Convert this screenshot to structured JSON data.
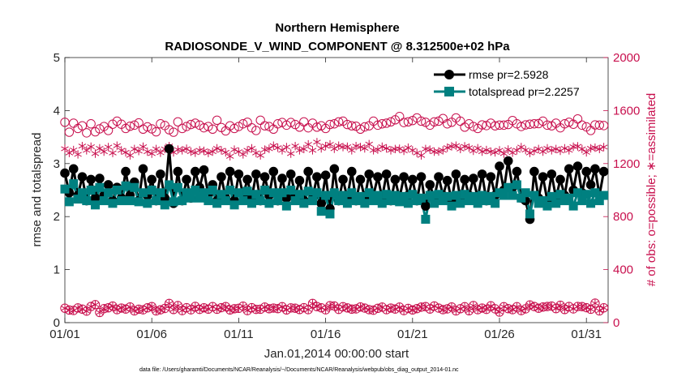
{
  "chart_data": {
    "type": "line",
    "title": "Northern Hemisphere",
    "subtitle": "RADIOSONDE_V_WIND_COMPONENT @ 8.312500e+02 hPa",
    "xlabel": "Jan.01,2014 00:00:00 start",
    "ylabel_left": "rmse and totalspread",
    "ylabel_right": "# of obs: o=possible; ∗=assimilated",
    "footnote": "data file: /Users/gharamti/Documents/NCAR/Reanalysis/~/Documents/NCAR/Reanalysis/webpub/obs_diag_output_2014-01.nc",
    "x_ticks": [
      "01/01",
      "01/06",
      "01/11",
      "01/16",
      "01/21",
      "01/26",
      "01/31"
    ],
    "x_tick_days": [
      1,
      6,
      11,
      16,
      21,
      26,
      31
    ],
    "xlim": [
      1,
      32.25
    ],
    "ylim_left": [
      0,
      5
    ],
    "yticks_left": [
      "0",
      "1",
      "2",
      "3",
      "4",
      "5"
    ],
    "ylim_right": [
      0,
      2000
    ],
    "yticks_right": [
      "0",
      "400",
      "800",
      "1200",
      "1600",
      "2000"
    ],
    "colors": {
      "rmse": "#000000",
      "spread": "#008080",
      "obs": "#c8104e"
    },
    "legend": {
      "position": "top-right",
      "rmse_label": "rmse pr=2.5928",
      "spread_label": "totalspread pr=2.2257"
    },
    "x_step_days": 0.25,
    "series": [
      {
        "name": "rmse",
        "values": [
          2.82,
          2.45,
          2.9,
          2.4,
          2.75,
          2.3,
          2.7,
          2.35,
          2.72,
          2.4,
          2.6,
          2.3,
          2.55,
          2.35,
          2.85,
          2.4,
          2.65,
          2.3,
          2.9,
          2.4,
          2.7,
          2.3,
          2.8,
          2.35,
          3.28,
          2.25,
          2.85,
          2.3,
          2.7,
          2.35,
          2.85,
          2.55,
          2.88,
          2.4,
          2.6,
          2.3,
          2.75,
          2.35,
          2.85,
          2.3,
          2.8,
          2.4,
          2.7,
          2.35,
          2.8,
          2.3,
          2.75,
          2.4,
          2.85,
          2.3,
          2.72,
          2.35,
          2.8,
          2.4,
          2.68,
          2.3,
          2.85,
          2.35,
          2.75,
          2.25,
          2.78,
          2.15,
          2.9,
          2.3,
          2.7,
          2.35,
          2.85,
          2.3,
          2.7,
          2.35,
          2.8,
          2.4,
          2.75,
          2.35,
          2.8,
          2.3,
          2.7,
          2.35,
          2.75,
          2.4,
          2.7,
          2.3,
          2.75,
          2.2,
          2.6,
          2.35,
          2.75,
          2.4,
          2.68,
          2.3,
          2.8,
          2.35,
          2.7,
          2.4,
          2.72,
          2.35,
          2.8,
          2.3,
          2.75,
          2.4,
          2.95,
          2.5,
          3.05,
          2.55,
          2.85,
          2.35,
          2.3,
          1.95,
          2.85,
          2.35,
          2.75,
          2.3,
          2.8,
          2.35,
          2.7,
          2.4,
          2.9,
          2.5,
          2.95,
          2.45,
          2.85,
          2.6,
          2.9,
          2.4,
          2.85
        ]
      },
      {
        "name": "totalspread",
        "values": [
          2.52,
          2.28,
          2.62,
          2.33,
          2.45,
          2.3,
          2.5,
          2.22,
          2.55,
          2.3,
          2.45,
          2.25,
          2.5,
          2.3,
          2.58,
          2.3,
          2.55,
          2.28,
          2.45,
          2.25,
          2.5,
          2.3,
          2.45,
          2.22,
          2.6,
          2.28,
          2.55,
          2.3,
          2.45,
          2.35,
          2.5,
          2.35,
          2.45,
          2.3,
          2.5,
          2.25,
          2.42,
          2.3,
          2.5,
          2.22,
          2.45,
          2.3,
          2.48,
          2.25,
          2.42,
          2.3,
          2.5,
          2.25,
          2.45,
          2.3,
          2.45,
          2.2,
          2.5,
          2.3,
          2.42,
          2.25,
          2.48,
          2.3,
          2.45,
          2.1,
          2.4,
          2.05,
          2.45,
          2.3,
          2.4,
          2.25,
          2.45,
          2.3,
          2.38,
          2.25,
          2.45,
          2.3,
          2.4,
          2.25,
          2.42,
          2.3,
          2.4,
          2.28,
          2.38,
          2.25,
          2.42,
          2.3,
          2.35,
          1.95,
          2.4,
          2.25,
          2.42,
          2.3,
          2.38,
          2.2,
          2.4,
          2.25,
          2.42,
          2.3,
          2.38,
          2.25,
          2.4,
          2.3,
          2.38,
          2.25,
          2.45,
          2.4,
          2.55,
          2.4,
          2.6,
          2.35,
          2.45,
          2.05,
          2.4,
          2.25,
          2.3,
          2.2,
          2.38,
          2.25,
          2.42,
          2.3,
          2.35,
          2.2,
          2.45,
          2.3,
          2.42,
          2.25,
          2.45,
          2.3,
          2.4
        ]
      },
      {
        "name": "obs_possible",
        "axis": "right",
        "values": [
          1512,
          1437,
          1505,
          1465,
          1485,
          1432,
          1500,
          1440,
          1462,
          1480,
          1450,
          1497,
          1520,
          1497,
          1465,
          1482,
          1490,
          1507,
          1460,
          1477,
          1462,
          1440,
          1500,
          1487,
          1455,
          1437,
          1515,
          1465,
          1480,
          1495,
          1505,
          1490,
          1470,
          1480,
          1460,
          1527,
          1472,
          1447,
          1485,
          1465,
          1480,
          1500,
          1512,
          1470,
          1450,
          1527,
          1485,
          1480,
          1460,
          1500,
          1510,
          1490,
          1510,
          1495,
          1475,
          1515,
          1470,
          1505,
          1475,
          1485,
          1465,
          1495,
          1500,
          1515,
          1520,
          1495,
          1485,
          1482,
          1460,
          1477,
          1485,
          1520,
          1490,
          1500,
          1505,
          1515,
          1530,
          1555,
          1510,
          1515,
          1525,
          1545,
          1520,
          1512,
          1490,
          1515,
          1520,
          1540,
          1500,
          1512,
          1545,
          1520,
          1475,
          1500,
          1480,
          1465,
          1492,
          1487,
          1505,
          1485,
          1490,
          1490,
          1495,
          1525,
          1500,
          1480,
          1492,
          1497,
          1500,
          1502,
          1520,
          1490,
          1485,
          1505,
          1470,
          1500,
          1512,
          1497,
          1537,
          1490,
          1477,
          1450,
          1492,
          1490,
          1487
        ]
      },
      {
        "name": "obs_assimilated",
        "axis": "right",
        "values": [
          1312,
          1280,
          1302,
          1270,
          1332,
          1300,
          1327,
          1275,
          1315,
          1290,
          1325,
          1280,
          1335,
          1300,
          1285,
          1262,
          1310,
          1295,
          1327,
          1290,
          1275,
          1310,
          1282,
          1310,
          1332,
          1285,
          1305,
          1300,
          1312,
          1290,
          1282,
          1300,
          1296,
          1280,
          1290,
          1315,
          1300,
          1285,
          1255,
          1305,
          1290,
          1270,
          1300,
          1315,
          1280,
          1262,
          1305,
          1312,
          1335,
          1320,
          1300,
          1325,
          1275,
          1332,
          1300,
          1310,
          1345,
          1300,
          1362,
          1315,
          1332,
          1345,
          1312,
          1335,
          1325,
          1327,
          1300,
          1332,
          1325,
          1315,
          1347,
          1300,
          1305,
          1327,
          1315,
          1300,
          1310,
          1312,
          1296,
          1320,
          1300,
          1280,
          1262,
          1310,
          1305,
          1290,
          1292,
          1300,
          1320,
          1330,
          1335,
          1310,
          1330,
          1320,
          1296,
          1316,
          1290,
          1302,
          1290,
          1285,
          1300,
          1275,
          1306,
          1282,
          1300,
          1325,
          1302,
          1280,
          1296,
          1310,
          1290,
          1315,
          1300,
          1310,
          1296,
          1315,
          1300,
          1327,
          1330,
          1310,
          1285,
          1315,
          1320,
          1310,
          1325
        ]
      },
      {
        "name": "obs_possible_low",
        "axis": "right",
        "values": [
          109,
          95,
          92,
          111,
          102,
          87,
          122,
          136,
          77,
          106,
          112,
          125,
          98,
          110,
          103,
          118,
          89,
          101,
          97,
          112,
          121,
          89,
          97,
          107,
          145,
          99,
          129,
          91,
          113,
          97,
          123,
          100,
          112,
          102,
          121,
          101,
          113,
          121,
          96,
          105,
          108,
          124,
          91,
          113,
          100,
          101,
          117,
          105,
          110,
          106,
          120,
          96,
          111,
          109,
          99,
          113,
          98,
          145,
          121,
          112,
          97,
          128,
          126,
          100,
          120,
          111,
          102,
          104,
          118,
          110,
          98,
          94,
          108,
          117,
          98,
          110,
          103,
          117,
          91,
          107,
          96,
          106,
          117,
          121,
          103,
          126,
          110,
          98,
          104,
          118,
          89,
          105,
          120,
          90,
          129,
          98,
          110,
          100,
          127,
          104,
          80,
          120,
          106,
          98,
          120,
          91,
          104,
          133,
          122,
          109,
          118,
          122,
          125,
          106,
          131,
          99,
          122,
          104,
          122,
          121,
          113,
          101,
          147,
          89,
          112
        ]
      },
      {
        "name": "obs_assimilated_low",
        "axis": "right",
        "values": [
          108,
          95,
          92,
          110,
          102,
          87,
          122,
          135,
          77,
          106,
          112,
          124,
          98,
          110,
          103,
          117,
          89,
          101,
          97,
          111,
          121,
          89,
          97,
          107,
          144,
          99,
          128,
          91,
          113,
          97,
          122,
          100,
          112,
          102,
          121,
          101,
          113,
          120,
          96,
          105,
          108,
          124,
          91,
          113,
          100,
          101,
          116,
          105,
          110,
          106,
          120,
          96,
          111,
          109,
          99,
          113,
          98,
          144,
          121,
          112,
          97,
          127,
          126,
          100,
          120,
          111,
          102,
          104,
          117,
          110,
          98,
          94,
          108,
          116,
          98,
          110,
          103,
          116,
          91,
          107,
          96,
          106,
          116,
          120,
          103,
          125,
          110,
          98,
          104,
          117,
          89,
          105,
          120,
          90,
          128,
          98,
          110,
          100,
          126,
          104,
          80,
          120,
          106,
          98,
          119,
          91,
          104,
          132,
          121,
          109,
          117,
          121,
          124,
          106,
          130,
          99,
          121,
          104,
          121,
          120,
          113,
          101,
          146,
          89,
          112
        ]
      }
    ]
  }
}
